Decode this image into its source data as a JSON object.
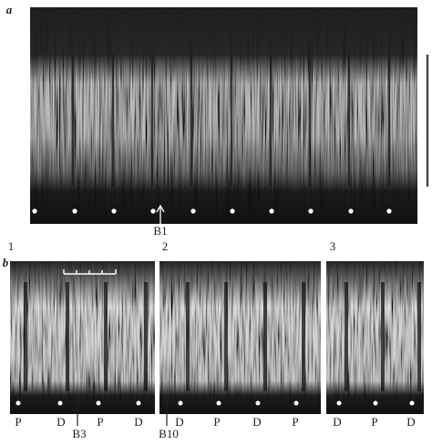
{
  "panel_a": {
    "label": "a",
    "arrow_label": "B1"
  },
  "panel_b": {
    "label": "b",
    "subpanels": [
      {
        "number": "1",
        "markers": [
          "P",
          "D",
          "P",
          "D"
        ],
        "arrow_label": "B3"
      },
      {
        "number": "2",
        "markers": [
          "D",
          "P",
          "D",
          "P"
        ],
        "arrow_label": "B10"
      },
      {
        "number": "3",
        "markers": [
          "D",
          "P",
          "D"
        ]
      }
    ]
  }
}
